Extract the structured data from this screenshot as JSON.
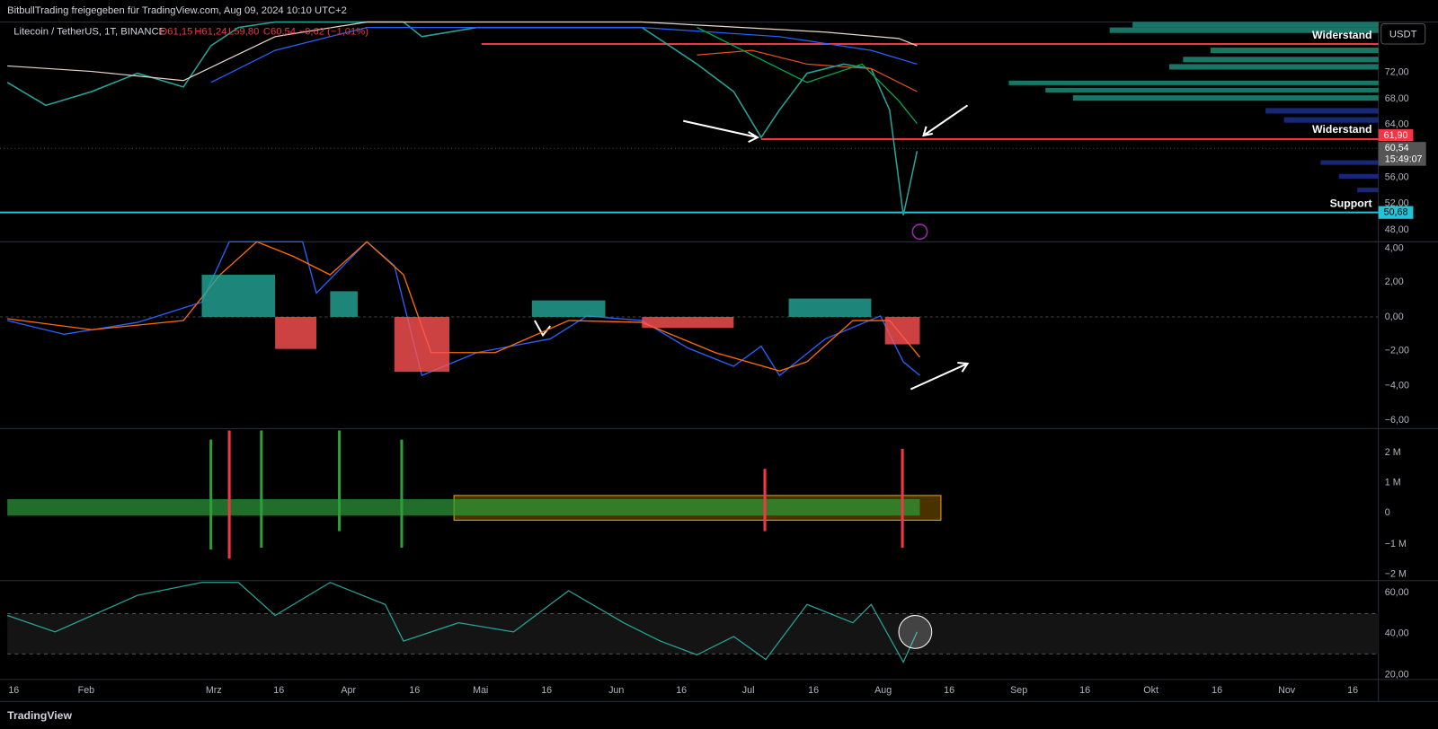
{
  "header": {
    "title": "BitbullTrading freigegeben für TradingView.com, Aug 09, 2024 10:10 UTC+2"
  },
  "legend": {
    "symbol": "Litecoin / TetherUS, 1T, BINANCE",
    "open": "O61,15",
    "high": "H61,24",
    "low": "L59,80",
    "close": "C60,54",
    "change": "−0,62 (−1,01%)"
  },
  "price_axis": {
    "currency": "USDT",
    "labels": [
      "72,00",
      "68,00",
      "64,00",
      "56,00",
      "52,00",
      "48,00"
    ],
    "badges": {
      "resistance": "61,90",
      "last": "60,54",
      "countdown": "15:49:07",
      "support": "50,68"
    }
  },
  "annotations": [
    "Widerstand",
    "Widerstand",
    "Support"
  ],
  "macd_axis": [
    "4,00",
    "2,00",
    "0,00",
    "−2,00",
    "−4,00",
    "−6,00"
  ],
  "volume_axis": [
    "2 M",
    "1 M",
    "0",
    "−1 M",
    "−2 M"
  ],
  "rsi_axis": [
    "60,00",
    "40,00",
    "20,00"
  ],
  "time_axis": [
    "16",
    "Feb",
    "Mrz",
    "16",
    "Apr",
    "16",
    "Mai",
    "16",
    "Jun",
    "16",
    "Jul",
    "16",
    "Aug",
    "16",
    "Sep",
    "16",
    "Okt",
    "16",
    "Nov",
    "16"
  ],
  "footer": {
    "brand": "TradingView"
  }
}
